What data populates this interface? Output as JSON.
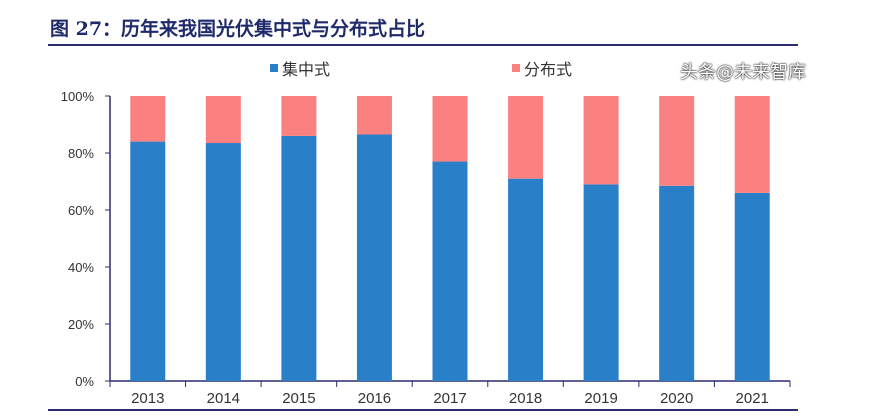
{
  "title": "图 27：历年来我国光伏集中式与分布式占比",
  "watermark": "头条@未来智库",
  "chart_data": {
    "type": "bar",
    "stacked": true,
    "categories": [
      "2013",
      "2014",
      "2015",
      "2016",
      "2017",
      "2018",
      "2019",
      "2020",
      "2021"
    ],
    "series": [
      {
        "name": "集中式",
        "color": "#2a7fc9",
        "values": [
          84,
          83.5,
          86,
          86.5,
          77,
          71,
          69,
          68.5,
          66
        ]
      },
      {
        "name": "分布式",
        "color": "#fb8080",
        "values": [
          16,
          16.5,
          14,
          13.5,
          23,
          29,
          31,
          31.5,
          34
        ]
      }
    ],
    "yticks": [
      "0%",
      "20%",
      "40%",
      "60%",
      "80%",
      "100%"
    ],
    "ylim": [
      0,
      100
    ],
    "legend": "top",
    "grid": false
  }
}
